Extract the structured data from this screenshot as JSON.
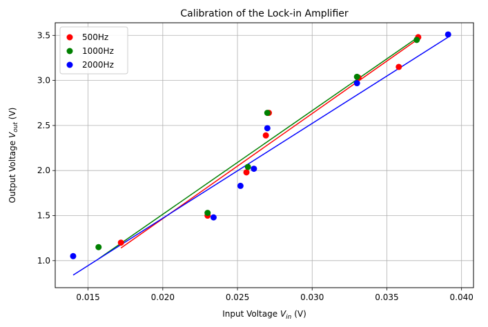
{
  "chart_data": {
    "type": "scatter",
    "title": "Calibration of the Lock-in Amplifier",
    "xlabel_prefix": "Input Voltage ",
    "xlabel_var": "V",
    "xlabel_sub": "in",
    "xlabel_suffix": " (V)",
    "ylabel_prefix": "Output Voltage ",
    "ylabel_var": "V",
    "ylabel_sub": "out",
    "ylabel_suffix": " (V)",
    "xlim": [
      0.0128,
      0.0408
    ],
    "ylim": [
      0.7,
      3.64
    ],
    "xticks": [
      0.015,
      0.02,
      0.025,
      0.03,
      0.035,
      0.04
    ],
    "xtick_labels": [
      "0.015",
      "0.020",
      "0.025",
      "0.030",
      "0.035",
      "0.040"
    ],
    "yticks": [
      1.0,
      1.5,
      2.0,
      2.5,
      3.0,
      3.5
    ],
    "ytick_labels": [
      "1.0",
      "1.5",
      "2.0",
      "2.5",
      "3.0",
      "3.5"
    ],
    "grid": true,
    "legend_position": "top-left",
    "series": [
      {
        "name": "500Hz",
        "color": "#ff0000",
        "x": [
          0.0172,
          0.023,
          0.0256,
          0.0269,
          0.0271,
          0.0331,
          0.0358,
          0.0371
        ],
        "y": [
          1.2,
          1.5,
          1.98,
          2.39,
          2.64,
          3.03,
          3.15,
          3.48
        ],
        "fit": {
          "x": [
            0.0172,
            0.0371
          ],
          "y": [
            1.14,
            3.46
          ]
        }
      },
      {
        "name": "1000Hz",
        "color": "#008000",
        "x": [
          0.0157,
          0.023,
          0.0257,
          0.027,
          0.033,
          0.037
        ],
        "y": [
          1.15,
          1.53,
          2.04,
          2.64,
          3.04,
          3.45
        ],
        "fit": {
          "x": [
            0.0157,
            0.037
          ],
          "y": [
            1.02,
            3.47
          ]
        }
      },
      {
        "name": "2000Hz",
        "color": "#0000ff",
        "x": [
          0.014,
          0.0234,
          0.0252,
          0.0261,
          0.027,
          0.033,
          0.0391
        ],
        "y": [
          1.05,
          1.48,
          1.83,
          2.02,
          2.47,
          2.97,
          3.51
        ],
        "fit": {
          "x": [
            0.014,
            0.0391
          ],
          "y": [
            0.84,
            3.48
          ]
        }
      }
    ]
  }
}
